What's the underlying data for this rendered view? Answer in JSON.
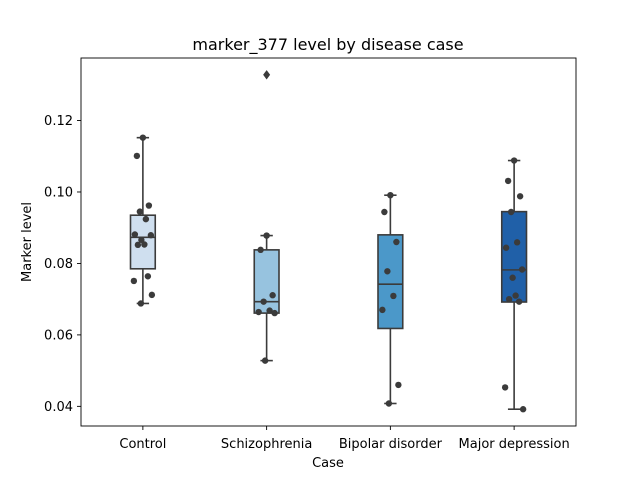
{
  "chart_data": {
    "type": "box",
    "title": "marker_377 level by disease case",
    "xlabel": "Case",
    "ylabel": "Marker level",
    "ylim": [
      0.0345,
      0.1375
    ],
    "yticks": [
      0.04,
      0.06,
      0.08,
      0.1,
      0.12
    ],
    "ytick_labels": [
      "0.04",
      "0.06",
      "0.08",
      "0.10",
      "0.12"
    ],
    "categories": [
      "Control",
      "Schizophrenia",
      "Bipolar disorder",
      "Major depression"
    ],
    "series": [
      {
        "category": "Control",
        "color": "#cfdfef",
        "q1": 0.0785,
        "median": 0.0873,
        "q3": 0.0935,
        "whisker_low": 0.0688,
        "whisker_high": 0.1152,
        "outliers": [],
        "points": [
          0.1152,
          0.1101,
          0.0962,
          0.0945,
          0.0924,
          0.0881,
          0.0879,
          0.0866,
          0.0853,
          0.0852,
          0.0764,
          0.0751,
          0.0712,
          0.0688
        ]
      },
      {
        "category": "Schizophrenia",
        "color": "#97c3df",
        "q1": 0.0661,
        "median": 0.0693,
        "q3": 0.0838,
        "whisker_low": 0.0528,
        "whisker_high": 0.0878,
        "outliers": [
          0.1328
        ],
        "points": [
          0.0878,
          0.0838,
          0.0711,
          0.0693,
          0.0668,
          0.0664,
          0.0661,
          0.0528
        ]
      },
      {
        "category": "Bipolar disorder",
        "color": "#4b98c9",
        "q1": 0.0618,
        "median": 0.0742,
        "q3": 0.088,
        "whisker_low": 0.0408,
        "whisker_high": 0.0991,
        "outliers": [],
        "points": [
          0.0991,
          0.0944,
          0.086,
          0.0778,
          0.0709,
          0.067,
          0.046,
          0.0408
        ]
      },
      {
        "category": "Major depression",
        "color": "#2060a8",
        "q1": 0.0692,
        "median": 0.0782,
        "q3": 0.0945,
        "whisker_low": 0.0392,
        "whisker_high": 0.1088,
        "outliers": [],
        "points": [
          0.1088,
          0.1031,
          0.0988,
          0.0944,
          0.0859,
          0.0844,
          0.0783,
          0.076,
          0.071,
          0.07,
          0.0693,
          0.0453,
          0.0392
        ]
      }
    ]
  }
}
